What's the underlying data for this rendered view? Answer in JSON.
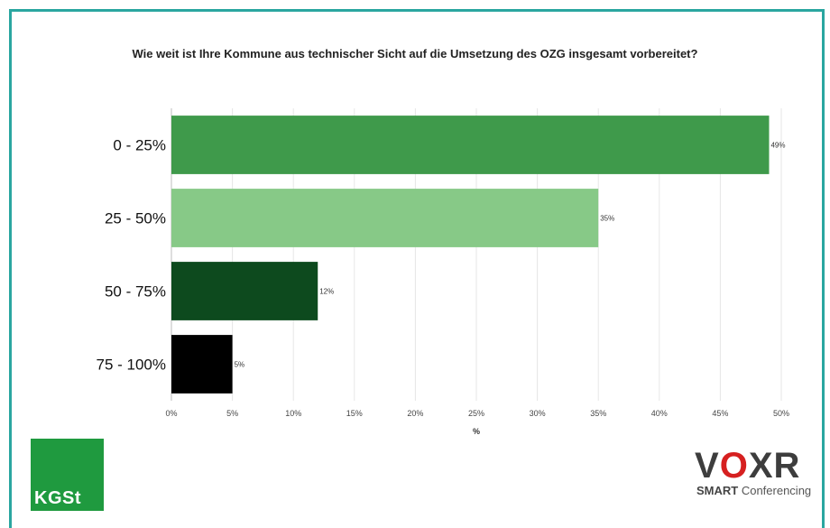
{
  "chart_data": {
    "type": "bar",
    "orientation": "horizontal",
    "title": "Wie weit ist Ihre Kommune aus technischer Sicht auf die Umsetzung des OZG insgesamt vorbereitet?",
    "xlabel": "%",
    "ylabel": "",
    "categories": [
      "0 - 25%",
      "25 - 50%",
      "50 - 75%",
      "75 - 100%"
    ],
    "values": [
      49,
      35,
      12,
      5
    ],
    "value_labels": [
      "49%",
      "35%",
      "12%",
      "5%"
    ],
    "bar_colors": [
      "#3f9a4b",
      "#87c987",
      "#0d4a1e",
      "#000000"
    ],
    "xlim": [
      0,
      50
    ],
    "x_ticks": [
      "0%",
      "5%",
      "10%",
      "15%",
      "20%",
      "25%",
      "30%",
      "35%",
      "40%",
      "45%",
      "50%"
    ],
    "grid": true
  },
  "logos": {
    "kgst": "KGSt",
    "voxr_left": "V",
    "voxr_o": "O",
    "voxr_right": "XR",
    "voxr_sub_bold": "SMART",
    "voxr_sub": " Conferencing"
  }
}
